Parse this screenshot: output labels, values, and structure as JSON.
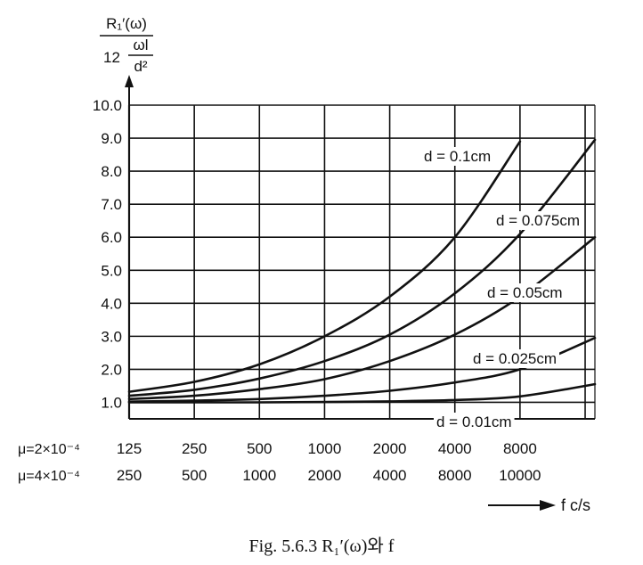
{
  "chart_data": {
    "type": "line",
    "title": "",
    "caption": "Fig. 5.6.3   R₁′(ω)와 f",
    "ylabel": {
      "numerator": "R₁′(ω)",
      "denominator_prefix": "12",
      "denominator_fraction_num": "ωl",
      "denominator_fraction_den": "d²"
    },
    "xlabel": "f c/s",
    "ylim": [
      0.5,
      10.0
    ],
    "y_ticks": [
      "1.0",
      "2.0",
      "3.0",
      "4.0",
      "5.0",
      "6.0",
      "7.0",
      "8.0",
      "9.0",
      "10.0"
    ],
    "x_positions": [
      0,
      1,
      2,
      3,
      4,
      5,
      6,
      7
    ],
    "xlim": [
      0,
      7.15
    ],
    "x_tick_rows": [
      {
        "label": "μ=2×10⁻⁴",
        "ticks": [
          "125",
          "250",
          "500",
          "1000",
          "2000",
          "4000",
          "8000"
        ]
      },
      {
        "label": "μ=4×10⁻⁴",
        "ticks": [
          "250",
          "500",
          "1000",
          "2000",
          "4000",
          "8000",
          "10000"
        ]
      }
    ],
    "grid": true,
    "series": [
      {
        "name": "d=0.1cm",
        "label": "d = 0.1cm",
        "x": [
          0,
          1,
          2,
          3,
          4,
          5,
          6
        ],
        "y": [
          1.32,
          1.62,
          2.15,
          3.0,
          4.2,
          6.0,
          8.9
        ]
      },
      {
        "name": "d=0.075cm",
        "label": "d = 0.075cm",
        "x": [
          0,
          1,
          2,
          3,
          4,
          5,
          6,
          7.15
        ],
        "y": [
          1.2,
          1.38,
          1.72,
          2.25,
          3.05,
          4.3,
          6.1,
          8.95
        ]
      },
      {
        "name": "d=0.05cm",
        "label": "d = 0.05cm",
        "x": [
          0,
          1,
          2,
          3,
          4,
          5,
          6,
          7.15
        ],
        "y": [
          1.1,
          1.2,
          1.4,
          1.7,
          2.25,
          3.05,
          4.2,
          6.0
        ]
      },
      {
        "name": "d=0.025cm",
        "label": "d = 0.025cm",
        "x": [
          0,
          1,
          2,
          3,
          4,
          5,
          6,
          7.15
        ],
        "y": [
          1.02,
          1.05,
          1.1,
          1.2,
          1.35,
          1.6,
          2.0,
          2.95
        ]
      },
      {
        "name": "d=0.01cm",
        "label": "d = 0.01cm",
        "x": [
          0,
          1,
          2,
          3,
          4,
          5,
          6,
          7.15
        ],
        "y": [
          1.0,
          1.0,
          1.0,
          1.01,
          1.03,
          1.07,
          1.18,
          1.55
        ]
      }
    ]
  }
}
